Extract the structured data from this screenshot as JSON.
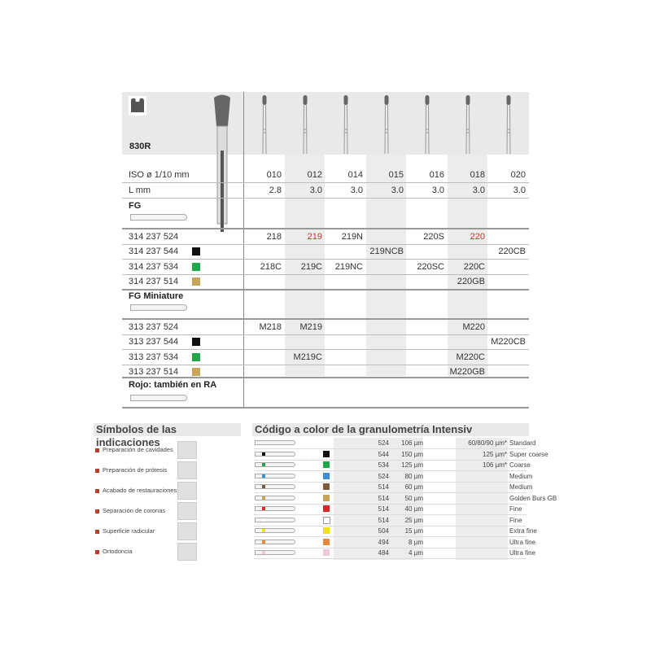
{
  "product": {
    "code": "830R"
  },
  "columns": [
    "010",
    "012",
    "014",
    "015",
    "016",
    "018",
    "020"
  ],
  "spec_rows": [
    {
      "label": "ISO ø 1/10 mm",
      "values": [
        "010",
        "012",
        "014",
        "015",
        "016",
        "018",
        "020"
      ]
    },
    {
      "label": "L mm",
      "values": [
        "2.8",
        "3.0",
        "3.0",
        "3.0",
        "3.0",
        "3.0",
        "3.0"
      ]
    }
  ],
  "sections": [
    {
      "title": "FG",
      "rows": [
        {
          "ref": "314 237 524",
          "swatch": null,
          "cells": [
            "218",
            "219",
            "219N",
            "",
            "220S",
            "220",
            ""
          ],
          "red": [
            1,
            5
          ]
        },
        {
          "ref": "314 237 544",
          "swatch": "#111111",
          "cells": [
            "",
            "",
            "",
            "219NCB",
            "",
            "",
            "220CB"
          ],
          "red": []
        },
        {
          "ref": "314 237 534",
          "swatch": "#22a64a",
          "cells": [
            "218C",
            "219C",
            "219NC",
            "",
            "220SC",
            "220C",
            ""
          ],
          "red": []
        },
        {
          "ref": "314 237 514",
          "swatch": "#c9a55a",
          "cells": [
            "",
            "",
            "",
            "",
            "",
            "220GB",
            ""
          ],
          "red": []
        }
      ]
    },
    {
      "title": "FG Miniature",
      "rows": [
        {
          "ref": "313 237 524",
          "swatch": null,
          "cells": [
            "M218",
            "M219",
            "",
            "",
            "",
            "M220",
            ""
          ],
          "red": []
        },
        {
          "ref": "313 237 544",
          "swatch": "#111111",
          "cells": [
            "",
            "",
            "",
            "",
            "",
            "",
            "M220CB"
          ],
          "red": []
        },
        {
          "ref": "313 237 534",
          "swatch": "#22a64a",
          "cells": [
            "",
            "M219C",
            "",
            "",
            "",
            "M220C",
            ""
          ],
          "red": []
        },
        {
          "ref": "313 237 514",
          "swatch": "#c9a55a",
          "cells": [
            "",
            "",
            "",
            "",
            "",
            "M220GB",
            ""
          ],
          "red": []
        }
      ]
    }
  ],
  "note": "Rojo: también en RA",
  "indications": {
    "title": "Símbolos de las indicaciones",
    "items": [
      "Preparación de cavidades",
      "Preparación de prótesis",
      "Acabado de restauraciones",
      "Separación de coronas",
      "Superficie radicular",
      "Ortodoncia"
    ]
  },
  "grit": {
    "title": "Código a color de la granulometría Intensiv",
    "rows": [
      {
        "color": null,
        "code": "524",
        "size": "106 µm",
        "alt": "60/80/90 µm*",
        "name": "Standard"
      },
      {
        "color": "#111111",
        "code": "544",
        "size": "150 µm",
        "alt": "125 µm*",
        "name": "Super coarse"
      },
      {
        "color": "#22a64a",
        "code": "534",
        "size": "125 µm",
        "alt": "106 µm*",
        "name": "Coarse"
      },
      {
        "color": "#3a8fd6",
        "code": "524",
        "size": "80 µm",
        "alt": "",
        "name": "Medium"
      },
      {
        "color": "#7a5a3a",
        "code": "514",
        "size": "60 µm",
        "alt": "",
        "name": "Medium"
      },
      {
        "color": "#c9a55a",
        "code": "514",
        "size": "50 µm",
        "alt": "",
        "name": "Golden Burs GB"
      },
      {
        "color": "#d62a2a",
        "code": "514",
        "size": "40 µm",
        "alt": "",
        "name": "Fine"
      },
      {
        "color": "#ffffff",
        "code": "514",
        "size": "25 µm",
        "alt": "",
        "name": "Fine"
      },
      {
        "color": "#f2e019",
        "code": "504",
        "size": "15 µm",
        "alt": "",
        "name": "Extra fine"
      },
      {
        "color": "#e88a3a",
        "code": "494",
        "size": "8 µm",
        "alt": "",
        "name": "Ultra fine"
      },
      {
        "color": "#f2c6dd",
        "code": "484",
        "size": "4 µm",
        "alt": "",
        "name": "Ultra fine"
      }
    ]
  }
}
